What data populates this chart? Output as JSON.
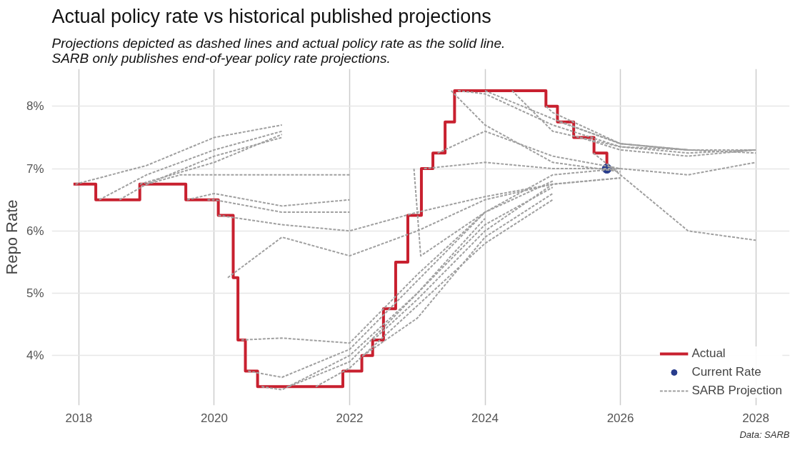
{
  "chart_data": {
    "type": "line",
    "title": "Actual policy rate vs historical published projections",
    "subtitle": "Projections depicted as dashed lines and actual policy rate as the solid line.\nSARB only publishes end-of-year policy rate projections.",
    "ylabel": "Repo Rate",
    "annotations": [
      "Data: SARB"
    ],
    "xlim": [
      2017.6,
      2028.5
    ],
    "xticks": [
      2018,
      2020,
      2022,
      2024,
      2026,
      2028
    ],
    "ylim": [
      3.2,
      8.6
    ],
    "yticks": [
      {
        "value": 4,
        "label": "4%"
      },
      {
        "value": 5,
        "label": "5%"
      },
      {
        "value": 6,
        "label": "6%"
      },
      {
        "value": 7,
        "label": "7%"
      },
      {
        "value": 8,
        "label": "8%"
      }
    ],
    "grid": true,
    "legend": "bottom right",
    "series": [
      {
        "type": "step",
        "name": "Actual",
        "color": "#c8202f",
        "line_style": "solid",
        "x": [
          2017.92,
          2018.25,
          2018.9,
          2019.58,
          2020.06,
          2020.28,
          2020.35,
          2020.46,
          2020.64,
          2021.9,
          2022.18,
          2022.34,
          2022.5,
          2022.68,
          2022.86,
          2023.06,
          2023.23,
          2023.41,
          2023.55,
          2024.9,
          2025.07,
          2025.31,
          2025.61,
          2025.8
        ],
        "values": [
          6.75,
          6.5,
          6.75,
          6.5,
          6.25,
          5.25,
          4.25,
          3.75,
          3.5,
          3.75,
          4.0,
          4.25,
          4.75,
          5.5,
          6.25,
          7.0,
          7.25,
          7.75,
          8.25,
          8.0,
          7.75,
          7.5,
          7.25,
          7.0
        ]
      },
      {
        "type": "scatter",
        "name": "Current Rate",
        "color": "#283c8c",
        "marker": "circle",
        "x": [
          2025.8
        ],
        "values": [
          7.0
        ]
      },
      {
        "color": "#a0a0a0",
        "line_style": "dashed",
        "x": [
          2017.95,
          2019,
          2020,
          2021
        ],
        "values": [
          6.75,
          7.05,
          7.5,
          7.7
        ]
      },
      {
        "type": "line",
        "color": "#a0a0a0",
        "line_style": "dashed",
        "x": [
          2018.3,
          2019,
          2020,
          2021
        ],
        "values": [
          6.5,
          6.9,
          7.3,
          7.6
        ]
      },
      {
        "type": "line",
        "color": "#a0a0a0",
        "line_style": "dashed",
        "x": [
          2018.6,
          2019,
          2020,
          2021
        ],
        "values": [
          6.5,
          6.75,
          7.2,
          7.5
        ]
      },
      {
        "type": "line",
        "color": "#a0a0a0",
        "line_style": "dashed",
        "x": [
          2018.9,
          2020,
          2021
        ],
        "values": [
          6.75,
          7.1,
          7.55
        ]
      },
      {
        "type": "line",
        "color": "#a0a0a0",
        "line_style": "dashed",
        "x": [
          2019,
          2019.5,
          2020,
          2021,
          2022
        ],
        "values": [
          6.75,
          6.9,
          6.9,
          6.9,
          6.9
        ]
      },
      {
        "type": "line",
        "color": "#a0a0a0",
        "line_style": "dashed",
        "x": [
          2019.6,
          2020,
          2021,
          2022
        ],
        "values": [
          6.5,
          6.6,
          6.4,
          6.5
        ]
      },
      {
        "type": "line",
        "color": "#a0a0a0",
        "line_style": "dashed",
        "x": [
          2019.9,
          2020,
          2021,
          2022
        ],
        "values": [
          6.5,
          6.5,
          6.3,
          6.3
        ]
      },
      {
        "type": "line",
        "color": "#a0a0a0",
        "line_style": "dashed",
        "x": [
          2020.06,
          2021,
          2022,
          2023,
          2024,
          2025,
          2026
        ],
        "values": [
          6.25,
          6.1,
          6.0,
          6.3,
          6.55,
          6.75,
          6.85
        ]
      },
      {
        "type": "line",
        "color": "#a0a0a0",
        "line_style": "dashed",
        "x": [
          2020.2,
          2021,
          2022,
          2023,
          2024,
          2025,
          2026
        ],
        "values": [
          5.25,
          5.9,
          5.6,
          6.0,
          6.5,
          6.75,
          6.85
        ]
      },
      {
        "type": "line",
        "color": "#a0a0a0",
        "line_style": "dashed",
        "x": [
          2020.4,
          2021,
          2022,
          2023,
          2024,
          2025
        ],
        "values": [
          4.25,
          4.28,
          4.2,
          5.3,
          6.3,
          6.8
        ]
      },
      {
        "type": "line",
        "color": "#a0a0a0",
        "line_style": "dashed",
        "x": [
          2020.5,
          2021,
          2022,
          2023,
          2024
        ],
        "values": [
          3.75,
          3.65,
          4.1,
          5.2,
          6.3
        ]
      },
      {
        "type": "line",
        "color": "#a0a0a0",
        "line_style": "dashed",
        "x": [
          2020.7,
          2021,
          2022,
          2023,
          2024
        ],
        "values": [
          3.5,
          3.45,
          4.0,
          5.0,
          6.2
        ]
      },
      {
        "type": "line",
        "color": "#a0a0a0",
        "line_style": "dashed",
        "x": [
          2021.1,
          2022,
          2023,
          2024,
          2025
        ],
        "values": [
          3.5,
          3.9,
          5.0,
          6.1,
          6.7
        ]
      },
      {
        "type": "line",
        "color": "#a0a0a0",
        "line_style": "dashed",
        "x": [
          2021.5,
          2022,
          2023,
          2024,
          2025
        ],
        "values": [
          3.5,
          3.8,
          4.8,
          5.8,
          6.5
        ]
      },
      {
        "type": "line",
        "color": "#a0a0a0",
        "line_style": "dashed",
        "x": [
          2022.2,
          2023,
          2024,
          2025
        ],
        "values": [
          4.0,
          4.6,
          5.9,
          6.6
        ]
      },
      {
        "type": "line",
        "color": "#a0a0a0",
        "line_style": "dashed",
        "x": [
          2022.35,
          2023,
          2024,
          2025
        ],
        "values": [
          4.25,
          4.9,
          6.0,
          6.75
        ]
      },
      {
        "type": "line",
        "color": "#a0a0a0",
        "line_style": "dashed",
        "x": [
          2022.95,
          2023.05,
          2024,
          2025,
          2026
        ],
        "values": [
          7.0,
          5.6,
          6.3,
          6.9,
          7.0
        ]
      },
      {
        "type": "line",
        "color": "#a0a0a0",
        "line_style": "dashed",
        "x": [
          2023.1,
          2024,
          2025,
          2026
        ],
        "values": [
          7.0,
          7.1,
          7.0,
          7.0
        ]
      },
      {
        "type": "line",
        "color": "#a0a0a0",
        "line_style": "dashed",
        "x": [
          2023.3,
          2024,
          2025,
          2026,
          2027,
          2028
        ],
        "values": [
          7.25,
          7.6,
          7.2,
          7.0,
          6.9,
          7.1
        ]
      },
      {
        "type": "line",
        "color": "#a0a0a0",
        "line_style": "dashed",
        "x": [
          2023.5,
          2024,
          2025,
          2026
        ],
        "values": [
          8.25,
          7.7,
          7.1,
          6.95
        ]
      },
      {
        "type": "line",
        "color": "#a0a0a0",
        "line_style": "dashed",
        "x": [
          2023.6,
          2024,
          2025,
          2026,
          2027
        ],
        "values": [
          8.25,
          8.2,
          7.7,
          7.35,
          7.3
        ]
      },
      {
        "type": "line",
        "color": "#a0a0a0",
        "line_style": "dashed",
        "x": [
          2024,
          2025,
          2026,
          2027
        ],
        "values": [
          8.25,
          7.8,
          7.4,
          7.3
        ]
      },
      {
        "type": "line",
        "color": "#a0a0a0",
        "line_style": "dashed",
        "x": [
          2024.4,
          2025,
          2026,
          2027,
          2028
        ],
        "values": [
          8.25,
          7.6,
          7.35,
          7.25,
          7.3
        ]
      },
      {
        "type": "line",
        "color": "#a0a0a0",
        "line_style": "dashed",
        "x": [
          2024.9,
          2025,
          2026,
          2027,
          2028
        ],
        "values": [
          8.0,
          7.9,
          7.4,
          7.3,
          7.25
        ]
      },
      {
        "type": "line",
        "color": "#a0a0a0",
        "line_style": "dashed",
        "x": [
          2025.1,
          2026,
          2027,
          2028
        ],
        "values": [
          7.75,
          7.4,
          7.3,
          7.3
        ]
      },
      {
        "type": "line",
        "color": "#a0a0a0",
        "line_style": "dashed",
        "x": [
          2025.4,
          2026,
          2027,
          2028
        ],
        "values": [
          7.5,
          7.3,
          7.2,
          7.3
        ]
      },
      {
        "name": "SARB Projection",
        "color": "#a0a0a0",
        "line_style": "dashed",
        "x": [
          2025.6,
          2026,
          2027,
          2028
        ],
        "values": [
          7.25,
          6.9,
          6.0,
          5.85
        ]
      }
    ]
  }
}
